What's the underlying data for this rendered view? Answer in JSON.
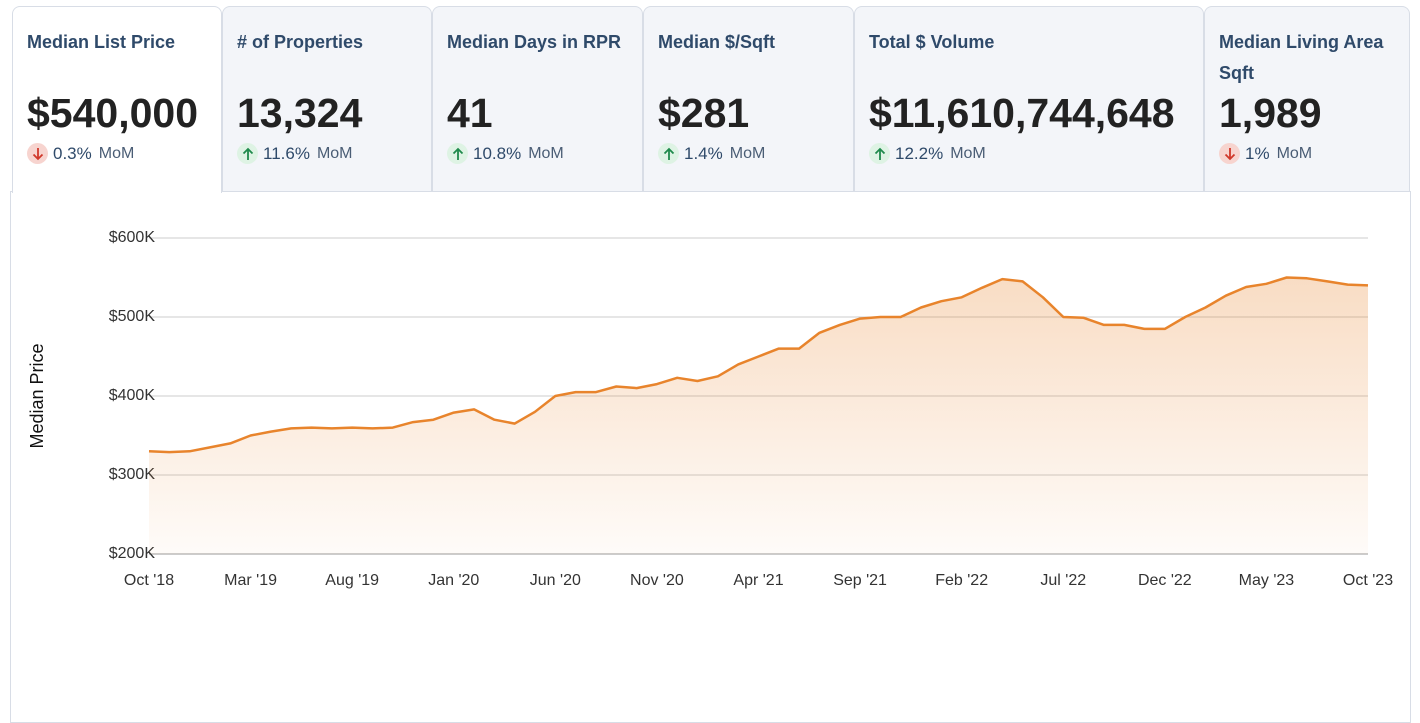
{
  "tabs": [
    {
      "title": "Median List Price",
      "value": "$540,000",
      "change": "0.3%",
      "period": "MoM",
      "trend": "down"
    },
    {
      "title": "# of Properties",
      "value": "13,324",
      "change": "11.6%",
      "period": "MoM",
      "trend": "up"
    },
    {
      "title": "Median Days in RPR",
      "value": "41",
      "change": "10.8%",
      "period": "MoM",
      "trend": "up"
    },
    {
      "title": "Median $/Sqft",
      "value": "$281",
      "change": "1.4%",
      "period": "MoM",
      "trend": "up"
    },
    {
      "title": "Total $ Volume",
      "value": "$11,610,744,648",
      "change": "12.2%",
      "period": "MoM",
      "trend": "up"
    },
    {
      "title": "Median Living Area Sqft",
      "value": "1,989",
      "change": "1%",
      "period": "MoM",
      "trend": "down"
    }
  ],
  "chart_data": {
    "type": "area",
    "y_label": "Median Price",
    "color": "#e8842c",
    "grid": true,
    "categories": [
      "Oct '18",
      null,
      null,
      null,
      null,
      "Mar '19",
      null,
      null,
      null,
      null,
      "Aug '19",
      null,
      null,
      null,
      null,
      "Jan '20",
      null,
      null,
      null,
      null,
      "Jun '20",
      null,
      null,
      null,
      null,
      "Nov '20",
      null,
      null,
      null,
      null,
      "Apr '21",
      null,
      null,
      null,
      null,
      "Sep '21",
      null,
      null,
      null,
      null,
      "Feb '22",
      null,
      null,
      null,
      null,
      "Jul '22",
      null,
      null,
      null,
      null,
      "Dec '22",
      null,
      null,
      null,
      null,
      "May '23",
      null,
      null,
      null,
      null,
      "Oct '23"
    ],
    "values": [
      330000,
      329000,
      330000,
      335000,
      340000,
      350000,
      355000,
      359000,
      360000,
      359000,
      360000,
      359000,
      360000,
      367000,
      370000,
      379000,
      383000,
      370000,
      365000,
      380000,
      400000,
      405000,
      405000,
      412000,
      410000,
      415000,
      423000,
      419000,
      425000,
      440000,
      450000,
      460000,
      460000,
      480000,
      490000,
      498000,
      500000,
      500000,
      512000,
      520000,
      525000,
      537000,
      548000,
      545000,
      525000,
      500000,
      499000,
      490000,
      490000,
      485000,
      485000,
      500000,
      512000,
      527000,
      538000,
      542000,
      550000,
      549000,
      545000,
      541000,
      540000
    ],
    "ylim": [
      200000,
      600000
    ],
    "yticks": [
      {
        "value": 200000,
        "label": "$200K"
      },
      {
        "value": 300000,
        "label": "$300K"
      },
      {
        "value": 400000,
        "label": "$400K"
      },
      {
        "value": 500000,
        "label": "$500K"
      },
      {
        "value": 600000,
        "label": "$600K"
      }
    ]
  }
}
